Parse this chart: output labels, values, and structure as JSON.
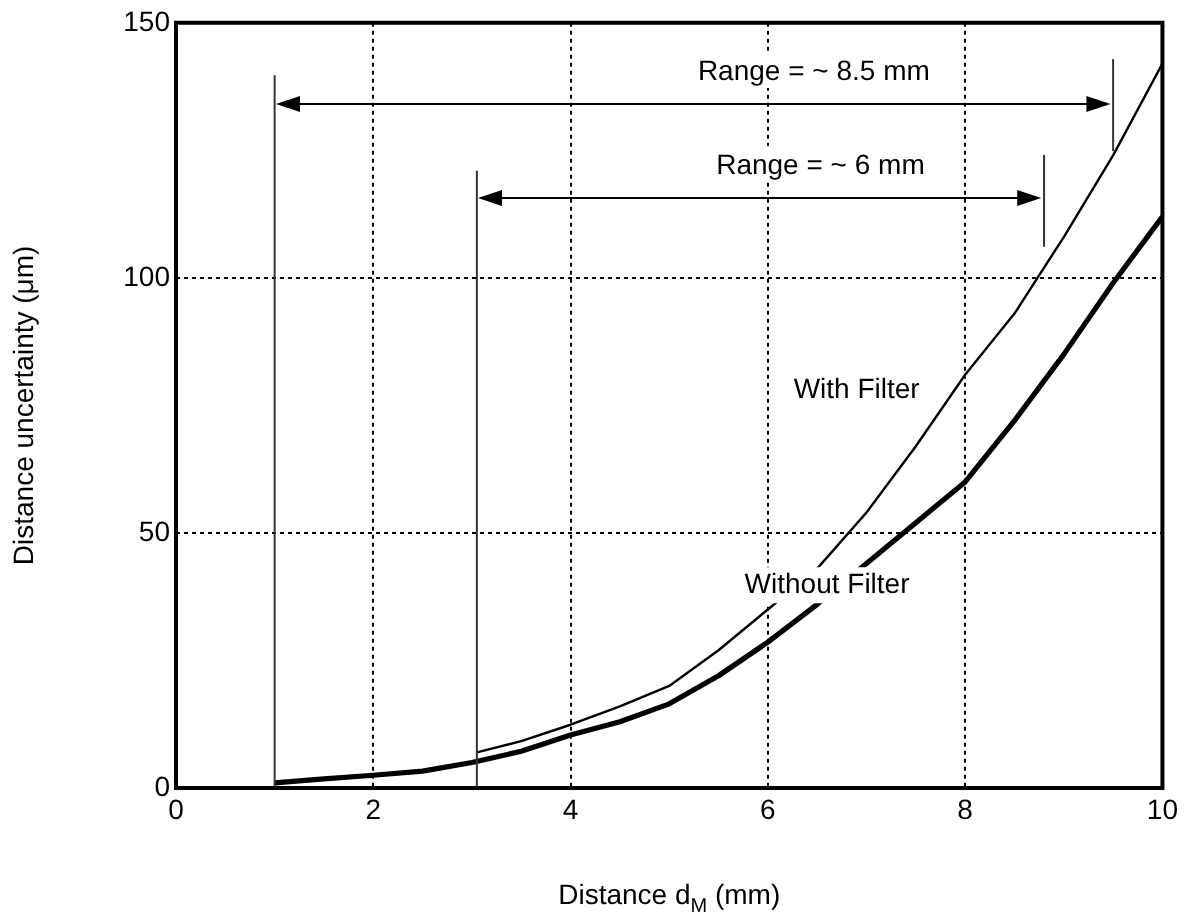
{
  "chart_data": {
    "type": "line",
    "xlabel": "Distance d$_{M}$ (mm)",
    "ylabel": "Distance uncertainty (μm)",
    "xlim": [
      0,
      10
    ],
    "xticks": [
      0,
      2,
      4,
      6,
      8,
      10
    ],
    "ylim": [
      0,
      150
    ],
    "yticks": [
      0,
      50,
      100,
      150
    ],
    "grid": true,
    "legend": false,
    "marker": "none",
    "line_style": "solid",
    "series": [
      {
        "name": "With Filter",
        "color": "#000000",
        "x": [
          3.05,
          3.5,
          4,
          4.5,
          5,
          5.5,
          6,
          6.5,
          7,
          7.5,
          8,
          8.5,
          9,
          9.5,
          10
        ],
        "values": [
          7,
          9.2,
          12.4,
          16,
          20,
          27,
          35,
          43,
          54,
          67,
          81,
          93,
          108,
          124,
          142
        ]
      },
      {
        "name": "Without Filter",
        "color": "#000000",
        "x": [
          1,
          1.5,
          2,
          2.5,
          3,
          3.5,
          4,
          4.5,
          5,
          5.5,
          6,
          6.5,
          7,
          7.5,
          8,
          8.5,
          9,
          9.5,
          10
        ],
        "values": [
          1,
          1.8,
          2.5,
          3.3,
          5,
          7.2,
          10.4,
          13,
          16.5,
          22,
          28.6,
          36,
          44,
          52,
          60,
          72,
          85,
          99,
          112
        ]
      }
    ],
    "ref_lines": [
      {
        "axis": "x",
        "value": 1,
        "color": "#333333"
      },
      {
        "axis": "x",
        "value": 3.05,
        "color": "#333333"
      },
      {
        "axis": "x",
        "value": 8.8,
        "color": "#333333"
      },
      {
        "axis": "x",
        "value": 9.5,
        "color": "#333333"
      }
    ],
    "annotations": [
      "Range = ~ 8.5 mm",
      "Range = ~ 6 mm"
    ]
  }
}
